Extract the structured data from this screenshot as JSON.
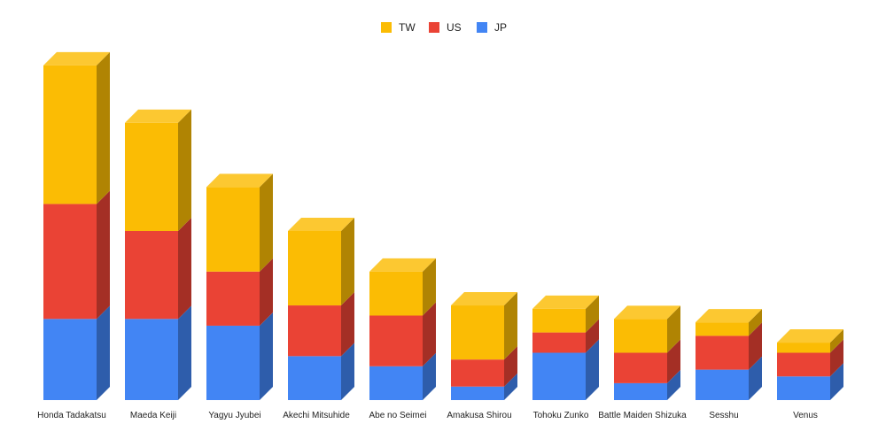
{
  "chart_data": {
    "type": "bar",
    "stacked": true,
    "style": "3d",
    "title": "",
    "xlabel": "",
    "ylabel": "",
    "ylim": [
      0,
      100
    ],
    "grid": false,
    "legend_position": "top",
    "categories": [
      "Honda Tadakatsu",
      "Maeda Keiji",
      "Yagyu Jyubei",
      "Akechi Mitsuhide",
      "Abe no Seimei",
      "Amakusa Shirou",
      "Tohoku Zunko",
      "Battle Maiden Shizuka",
      "Sesshu",
      "Venus"
    ],
    "series": [
      {
        "name": "JP",
        "color": "#4285f4",
        "values": [
          24,
          24,
          22,
          13,
          10,
          4,
          14,
          5,
          9,
          7
        ]
      },
      {
        "name": "US",
        "color": "#ea4335",
        "values": [
          34,
          26,
          16,
          15,
          15,
          8,
          6,
          9,
          10,
          7
        ]
      },
      {
        "name": "TW",
        "color": "#fbbc04",
        "values": [
          41,
          32,
          25,
          22,
          13,
          16,
          7,
          10,
          4,
          3
        ]
      }
    ],
    "legend_order": [
      "TW",
      "US",
      "JP"
    ]
  }
}
